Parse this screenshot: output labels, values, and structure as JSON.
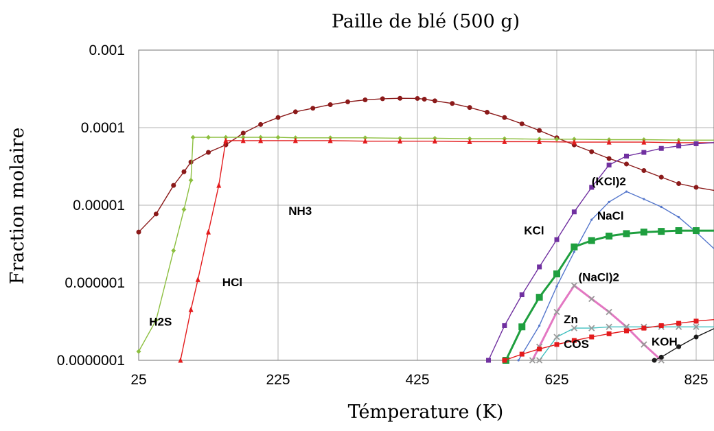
{
  "chart_data": {
    "type": "line",
    "title": "Paille de blé (500 g)",
    "xlabel": "Témperature (K)",
    "ylabel": "Fraction molaire",
    "y_scale": "log",
    "xlim": [
      25,
      860
    ],
    "ylim": [
      1e-07,
      0.001
    ],
    "grid": true,
    "x_ticks": [
      "25",
      "225",
      "425",
      "625",
      "825"
    ],
    "x_tick_values": [
      25,
      225,
      425,
      625,
      825
    ],
    "y_ticks": [
      "0.0000001",
      "0.000001",
      "0.00001",
      "0.0001",
      "0.001"
    ],
    "y_tick_values": [
      1e-07,
      1e-06,
      1e-05,
      0.0001,
      0.001
    ],
    "series": [
      {
        "name": "NH3",
        "color": "#8b1a1a",
        "marker": "circle",
        "label_x": 240,
        "label_y": 7.5e-06,
        "x": [
          25,
          50,
          75,
          90,
          100,
          125,
          150,
          175,
          200,
          225,
          250,
          275,
          300,
          325,
          350,
          375,
          400,
          425,
          435,
          450,
          475,
          500,
          525,
          550,
          575,
          600,
          625,
          650,
          675,
          700,
          725,
          750,
          775,
          800,
          825,
          860
        ],
        "y": [
          4.5e-06,
          7.7e-06,
          1.8e-05,
          2.7e-05,
          3.6e-05,
          4.8e-05,
          6e-05,
          8.5e-05,
          0.00011,
          0.000135,
          0.00016,
          0.000178,
          0.000198,
          0.000215,
          0.000228,
          0.000236,
          0.000239,
          0.000238,
          0.000233,
          0.000222,
          0.000205,
          0.000182,
          0.000158,
          0.000135,
          0.000112,
          9.2e-05,
          7.4e-05,
          6e-05,
          4.9e-05,
          4e-05,
          3.4e-05,
          2.8e-05,
          2.3e-05,
          1.9e-05,
          1.7e-05,
          1.5e-05
        ]
      },
      {
        "name": "H2S",
        "color": "#8cbf3f",
        "marker": "diamond",
        "label_x": 40,
        "label_y": 2.8e-07,
        "x": [
          25,
          50,
          75,
          90,
          100,
          103,
          125,
          150,
          175,
          200,
          225,
          250,
          300,
          350,
          400,
          450,
          500,
          550,
          600,
          625,
          650,
          700,
          750,
          800,
          860
        ],
        "y": [
          1.3e-07,
          3.3e-07,
          2.6e-06,
          8.8e-06,
          2.1e-05,
          7.5e-05,
          7.5e-05,
          7.5e-05,
          7.5e-05,
          7.5e-05,
          7.5e-05,
          7.4e-05,
          7.4e-05,
          7.4e-05,
          7.3e-05,
          7.3e-05,
          7.2e-05,
          7.2e-05,
          7.1e-05,
          7.1e-05,
          7.1e-05,
          7e-05,
          7e-05,
          6.9e-05,
          6.9e-05
        ]
      },
      {
        "name": "HCl",
        "color": "#e31a1c",
        "marker": "triangle",
        "label_x": 145,
        "label_y": 9e-07,
        "x": [
          85,
          100,
          110,
          125,
          140,
          150,
          175,
          200,
          250,
          300,
          350,
          400,
          450,
          500,
          550,
          600,
          650,
          700,
          750,
          800,
          860
        ],
        "y": [
          1e-07,
          4.5e-07,
          1.1e-06,
          4.5e-06,
          1.8e-05,
          6.8e-05,
          6.8e-05,
          6.8e-05,
          6.8e-05,
          6.8e-05,
          6.7e-05,
          6.7e-05,
          6.7e-05,
          6.6e-05,
          6.6e-05,
          6.6e-05,
          6.5e-05,
          6.5e-05,
          6.5e-05,
          6.4e-05,
          6.4e-05
        ]
      },
      {
        "name": "KCl",
        "color": "#7030a0",
        "marker": "square",
        "label_x": 578,
        "label_y": 4.2e-06,
        "x": [
          527,
          550,
          575,
          600,
          625,
          650,
          675,
          700,
          725,
          750,
          775,
          800,
          825,
          860
        ],
        "y": [
          1e-07,
          2.8e-07,
          7e-07,
          1.6e-06,
          3.6e-06,
          8.2e-06,
          1.7e-05,
          3.3e-05,
          4.3e-05,
          4.8e-05,
          5.4e-05,
          5.8e-05,
          6.2e-05,
          6.5e-05
        ]
      },
      {
        "name": "(KCl)2",
        "color": "#5577cc",
        "marker": "dot",
        "label_x": 675,
        "label_y": 1.8e-05,
        "x": [
          570,
          600,
          625,
          650,
          675,
          700,
          725,
          750,
          775,
          800,
          825,
          860
        ],
        "y": [
          1e-07,
          2.8e-07,
          9e-07,
          2.5e-06,
          6.5e-06,
          1.1e-05,
          1.5e-05,
          1.2e-05,
          9.5e-06,
          7e-06,
          4.5e-06,
          2.3e-06
        ]
      },
      {
        "name": "NaCl",
        "color": "#1f9f3f",
        "marker": "square",
        "label_x": 683,
        "label_y": 6.5e-06,
        "x": [
          552,
          575,
          600,
          625,
          650,
          675,
          700,
          725,
          750,
          775,
          800,
          825,
          860
        ],
        "y": [
          1e-07,
          2.7e-07,
          6.5e-07,
          1.3e-06,
          2.9e-06,
          3.5e-06,
          4e-06,
          4.3e-06,
          4.5e-06,
          4.6e-06,
          4.7e-06,
          4.7e-06,
          4.7e-06
        ]
      },
      {
        "name": "(NaCl)2",
        "color": "#e377c2",
        "marker": "x",
        "label_x": 656,
        "label_y": 1.05e-06,
        "x": [
          590,
          600,
          625,
          650,
          675,
          700,
          725,
          750,
          775
        ],
        "y": [
          1e-07,
          1.5e-07,
          4.2e-07,
          9.2e-07,
          6.2e-07,
          4.2e-07,
          2.7e-07,
          1.6e-07,
          1e-07
        ]
      },
      {
        "name": "Zn",
        "color": "#3fbfbf",
        "marker": "x",
        "label_x": 635,
        "label_y": 3e-07,
        "x": [
          600,
          625,
          650,
          675,
          700,
          725,
          750,
          775,
          800,
          825,
          860
        ],
        "y": [
          1e-07,
          2e-07,
          2.6e-07,
          2.6e-07,
          2.7e-07,
          2.7e-07,
          2.7e-07,
          2.7e-07,
          2.7e-07,
          2.7e-07,
          2.7e-07
        ]
      },
      {
        "name": "COS",
        "color": "#e31a1c",
        "marker": "square",
        "label_x": 635,
        "label_y": 1.45e-07,
        "x": [
          550,
          575,
          600,
          625,
          650,
          675,
          700,
          725,
          750,
          775,
          800,
          825,
          860
        ],
        "y": [
          1e-07,
          1.2e-07,
          1.4e-07,
          1.6e-07,
          1.8e-07,
          2e-07,
          2.2e-07,
          2.4e-07,
          2.6e-07,
          2.8e-07,
          3e-07,
          3.2e-07,
          3.4e-07
        ]
      },
      {
        "name": "KOH",
        "color": "#1a1a1a",
        "marker": "circle",
        "label_x": 761,
        "label_y": 1.55e-07,
        "x": [
          765,
          775,
          800,
          825,
          860
        ],
        "y": [
          1e-07,
          1.1e-07,
          1.5e-07,
          2e-07,
          2.8e-07
        ]
      }
    ]
  }
}
